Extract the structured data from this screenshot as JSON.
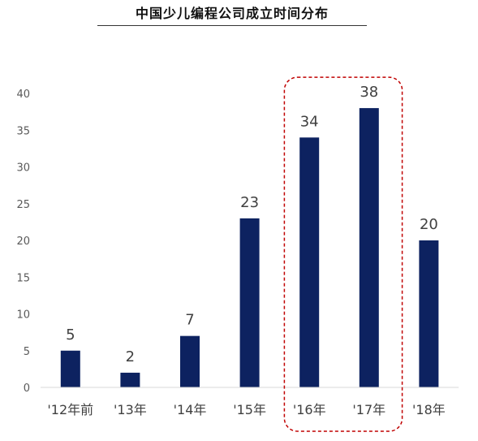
{
  "chart_data": {
    "type": "bar",
    "title": "中国少儿编程公司成立时间分布",
    "categories": [
      "'12年前",
      "'13年",
      "'14年",
      "'15年",
      "'16年",
      "'17年",
      "'18年"
    ],
    "values": [
      5,
      2,
      7,
      23,
      34,
      38,
      20
    ],
    "xlabel": "",
    "ylabel": "",
    "ylim": [
      0,
      40
    ],
    "yticks": [
      0,
      5,
      10,
      15,
      20,
      25,
      30,
      35,
      40
    ],
    "grid": false,
    "legend": "none",
    "bar_color": "#0D2260",
    "highlight": {
      "categories": [
        "'16年",
        "'17年"
      ],
      "style": "dashed",
      "color": "#C00000"
    }
  }
}
